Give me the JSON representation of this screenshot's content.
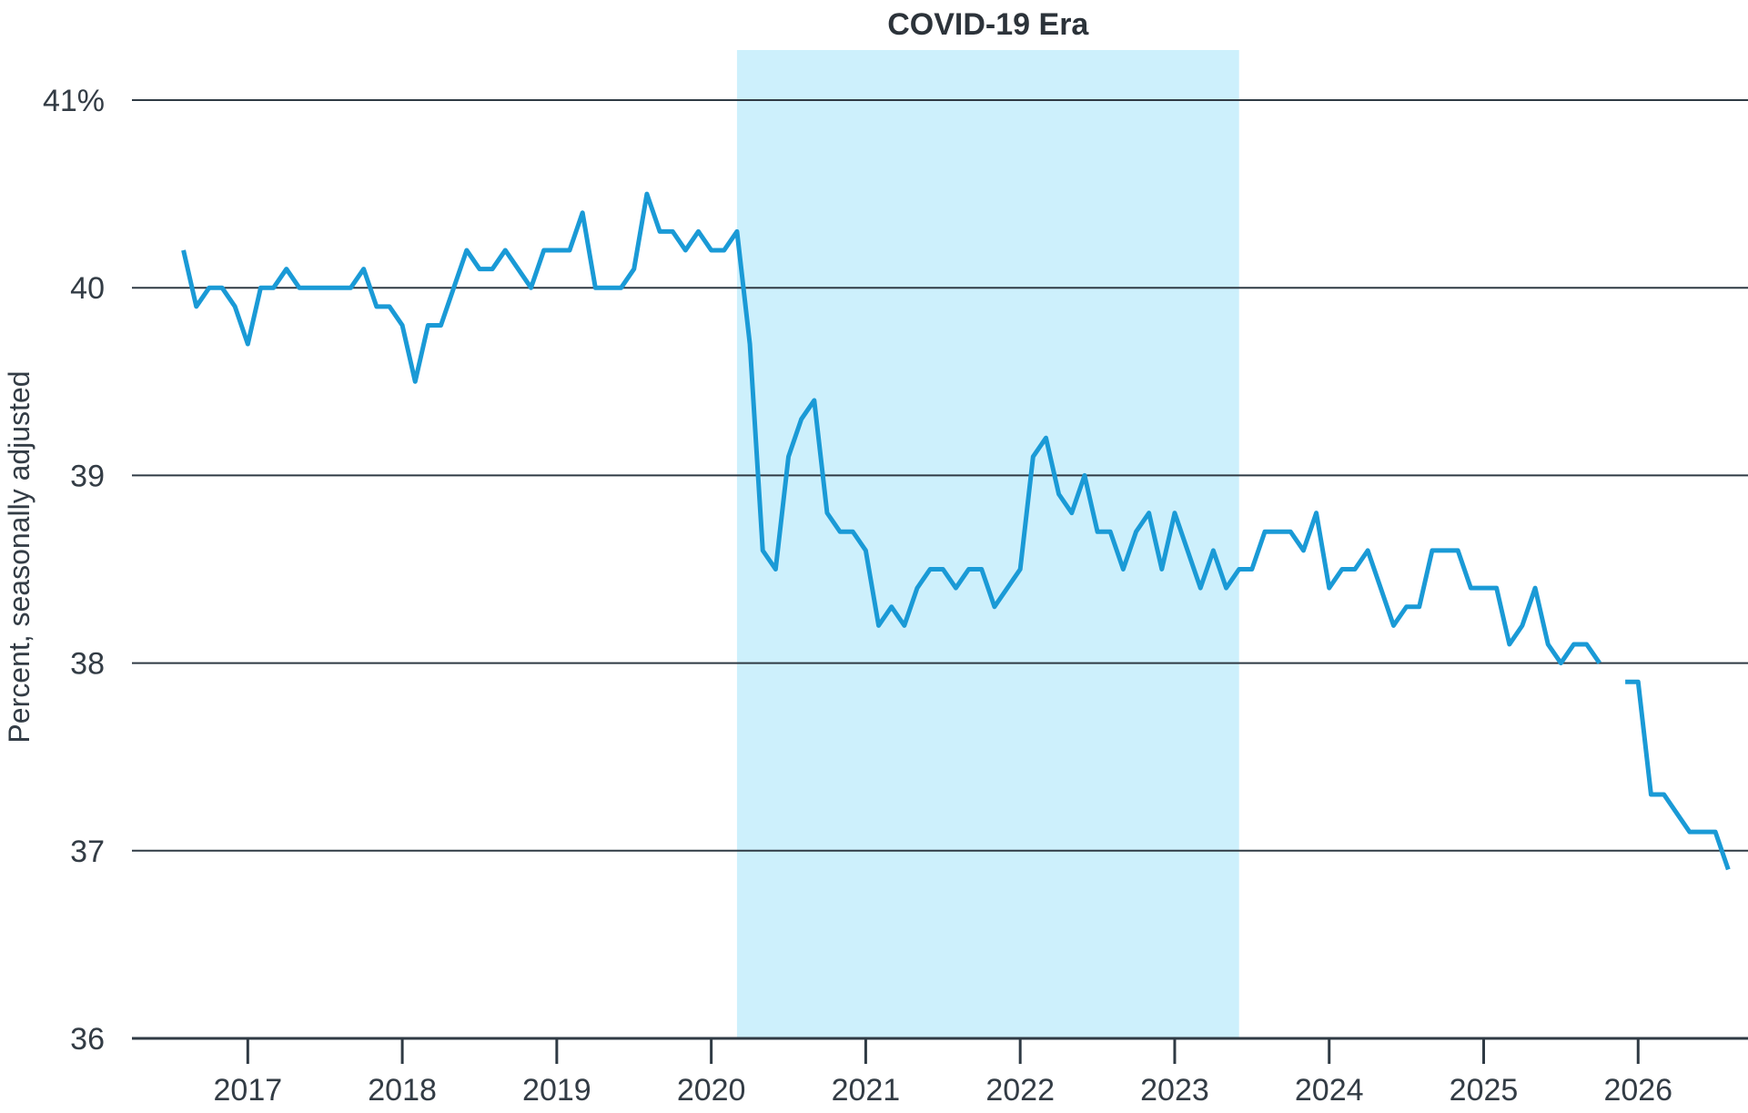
{
  "chart_data": {
    "type": "line",
    "title": "",
    "xlabel": "",
    "ylabel": "Percent, seasonally adjusted",
    "ylim": [
      36,
      41
    ],
    "y_ticks": [
      {
        "value": 41,
        "label": "41%"
      },
      {
        "value": 40,
        "label": "40"
      },
      {
        "value": 39,
        "label": "39"
      },
      {
        "value": 38,
        "label": "38"
      },
      {
        "value": 37,
        "label": "37"
      },
      {
        "value": 36,
        "label": "36"
      }
    ],
    "x_ticks": [
      "2017",
      "2018",
      "2019",
      "2020",
      "2021",
      "2022",
      "2023",
      "2024",
      "2025",
      "2026"
    ],
    "xlim": [
      "2016-04",
      "2026-06"
    ],
    "grid": true,
    "line_color": "#1a9ad6",
    "shaded_region": {
      "label": "COVID-19 Era",
      "start": "2020-03",
      "end": "2023-06",
      "color": "#cdf0fc"
    },
    "series": [
      {
        "segments": [
          [
            [
              "2016-08",
              40.2
            ],
            [
              "2016-09",
              39.9
            ],
            [
              "2016-10",
              40.0
            ],
            [
              "2016-11",
              40.0
            ],
            [
              "2016-12",
              39.9
            ],
            [
              "2017-01",
              39.7
            ],
            [
              "2017-02",
              40.0
            ],
            [
              "2017-03",
              40.0
            ],
            [
              "2017-04",
              40.1
            ],
            [
              "2017-05",
              40.0
            ],
            [
              "2017-06",
              40.0
            ],
            [
              "2017-07",
              40.0
            ],
            [
              "2017-08",
              40.0
            ],
            [
              "2017-09",
              40.0
            ],
            [
              "2017-10",
              40.1
            ],
            [
              "2017-11",
              39.9
            ],
            [
              "2017-12",
              39.9
            ],
            [
              "2018-01",
              39.8
            ],
            [
              "2018-02",
              39.5
            ],
            [
              "2018-03",
              39.8
            ],
            [
              "2018-04",
              39.8
            ],
            [
              "2018-05",
              40.0
            ],
            [
              "2018-06",
              40.2
            ],
            [
              "2018-07",
              40.1
            ],
            [
              "2018-08",
              40.1
            ],
            [
              "2018-09",
              40.2
            ],
            [
              "2018-10",
              40.1
            ],
            [
              "2018-11",
              40.0
            ],
            [
              "2018-12",
              40.2
            ],
            [
              "2019-01",
              40.2
            ],
            [
              "2019-02",
              40.2
            ],
            [
              "2019-03",
              40.4
            ],
            [
              "2019-04",
              40.0
            ],
            [
              "2019-05",
              40.0
            ],
            [
              "2019-06",
              40.0
            ],
            [
              "2019-07",
              40.1
            ],
            [
              "2019-08",
              40.5
            ],
            [
              "2019-09",
              40.3
            ],
            [
              "2019-10",
              40.3
            ],
            [
              "2019-11",
              40.2
            ],
            [
              "2019-12",
              40.3
            ],
            [
              "2020-01",
              40.2
            ],
            [
              "2020-02",
              40.2
            ],
            [
              "2020-03",
              40.3
            ],
            [
              "2020-04",
              39.7
            ],
            [
              "2020-05",
              38.6
            ],
            [
              "2020-06",
              38.5
            ],
            [
              "2020-07",
              39.1
            ],
            [
              "2020-08",
              39.3
            ],
            [
              "2020-09",
              39.4
            ],
            [
              "2020-10",
              38.8
            ],
            [
              "2020-11",
              38.7
            ],
            [
              "2020-12",
              38.7
            ],
            [
              "2021-01",
              38.6
            ],
            [
              "2021-02",
              38.2
            ],
            [
              "2021-03",
              38.3
            ],
            [
              "2021-04",
              38.2
            ],
            [
              "2021-05",
              38.4
            ],
            [
              "2021-06",
              38.5
            ],
            [
              "2021-07",
              38.5
            ],
            [
              "2021-08",
              38.4
            ],
            [
              "2021-09",
              38.5
            ],
            [
              "2021-10",
              38.5
            ],
            [
              "2021-11",
              38.3
            ],
            [
              "2021-12",
              38.4
            ],
            [
              "2022-01",
              38.5
            ],
            [
              "2022-02",
              39.1
            ],
            [
              "2022-03",
              39.2
            ],
            [
              "2022-04",
              38.9
            ],
            [
              "2022-05",
              38.8
            ],
            [
              "2022-06",
              39.0
            ],
            [
              "2022-07",
              38.7
            ],
            [
              "2022-08",
              38.7
            ],
            [
              "2022-09",
              38.5
            ],
            [
              "2022-10",
              38.7
            ],
            [
              "2022-11",
              38.8
            ],
            [
              "2022-12",
              38.5
            ],
            [
              "2023-01",
              38.8
            ],
            [
              "2023-02",
              38.6
            ],
            [
              "2023-03",
              38.4
            ],
            [
              "2023-04",
              38.6
            ],
            [
              "2023-05",
              38.4
            ],
            [
              "2023-06",
              38.5
            ],
            [
              "2023-07",
              38.5
            ],
            [
              "2023-08",
              38.7
            ],
            [
              "2023-09",
              38.7
            ],
            [
              "2023-10",
              38.7
            ],
            [
              "2023-11",
              38.6
            ],
            [
              "2023-12",
              38.8
            ],
            [
              "2024-01",
              38.4
            ],
            [
              "2024-02",
              38.5
            ],
            [
              "2024-03",
              38.5
            ],
            [
              "2024-04",
              38.6
            ],
            [
              "2024-05",
              38.4
            ],
            [
              "2024-06",
              38.2
            ],
            [
              "2024-07",
              38.3
            ],
            [
              "2024-08",
              38.3
            ],
            [
              "2024-09",
              38.6
            ],
            [
              "2024-10",
              38.6
            ],
            [
              "2024-11",
              38.6
            ],
            [
              "2024-12",
              38.4
            ],
            [
              "2025-01",
              38.4
            ],
            [
              "2025-02",
              38.4
            ],
            [
              "2025-03",
              38.1
            ],
            [
              "2025-04",
              38.2
            ],
            [
              "2025-05",
              38.4
            ],
            [
              "2025-06",
              38.1
            ],
            [
              "2025-07",
              38.0
            ],
            [
              "2025-08",
              38.1
            ],
            [
              "2025-09",
              38.1
            ],
            [
              "2025-10",
              38.0
            ]
          ],
          [
            [
              "2025-12",
              37.9
            ],
            [
              "2026-01",
              37.9
            ],
            [
              "2026-02",
              37.3
            ],
            [
              "2026-03",
              37.3
            ],
            [
              "2026-04",
              37.2
            ],
            [
              "2026-05",
              37.1
            ],
            [
              "2026-06",
              37.1
            ],
            [
              "2026-07",
              37.1
            ],
            [
              "2026-08",
              36.9
            ]
          ]
        ]
      }
    ]
  }
}
